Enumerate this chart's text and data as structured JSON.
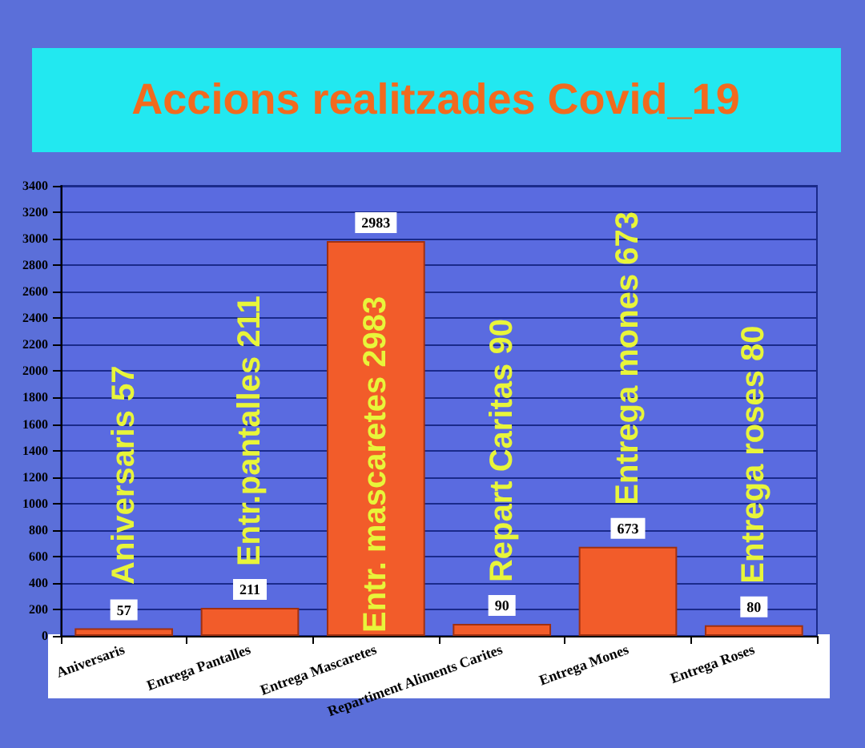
{
  "chart_data": {
    "type": "bar",
    "title": "Accions realitzades Covid_19",
    "categories": [
      "Aniversaris",
      "Entrega Pantalles",
      "Entrega Mascaretes",
      "Repartiment Aliments Carites",
      "Entrega Mones",
      "Entrega Roses"
    ],
    "values": [
      57,
      211,
      2983,
      90,
      673,
      80
    ],
    "color": "#f25c2a",
    "ylim": [
      0,
      3400
    ],
    "yticks": [
      0,
      200,
      400,
      600,
      800,
      1000,
      1200,
      1400,
      1600,
      1800,
      2000,
      2200,
      2400,
      2600,
      2800,
      3000,
      3200,
      3400
    ],
    "grid": "y",
    "data_labels": true,
    "annotations": [
      "Aniversaris 57",
      "Entr.pantalles 211",
      "Entr. mascaretes 2983",
      "Repart Caritas 90",
      "Entrega mones 673",
      "Entrega roses 80"
    ]
  }
}
